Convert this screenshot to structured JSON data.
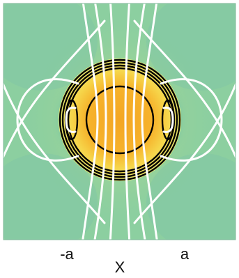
{
  "axis": {
    "xlabel": "X",
    "ticks": [
      "-a",
      "a"
    ]
  },
  "colors": {
    "background": "#8ccfa0",
    "center_hot": "#f6b32c",
    "center_warm": "#f7e46c",
    "side_cool": "#3fb0b6",
    "white_lines": "#ffffff",
    "black_lines": "#000000"
  }
}
